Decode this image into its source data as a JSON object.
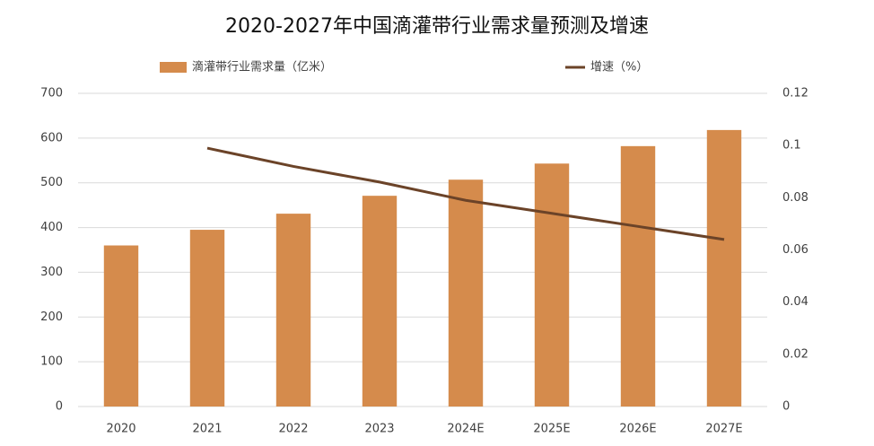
{
  "chart_data": {
    "type": "bar",
    "title": "2020-2027年中国滴灌带行业需求量预测及增速",
    "categories": [
      "2020",
      "2021",
      "2022",
      "2023",
      "2024E",
      "2025E",
      "2026E",
      "2027E"
    ],
    "series": [
      {
        "name": "滴灌带行业需求量（亿米）",
        "type": "bar",
        "color": "#d58b4c",
        "values": [
          360,
          395,
          431,
          471,
          507,
          543,
          582,
          618
        ]
      },
      {
        "name": "增速（%）",
        "type": "line",
        "axis": "y2",
        "color": "#6b4328",
        "values": [
          null,
          0.099,
          0.092,
          0.086,
          0.079,
          0.074,
          0.069,
          0.064
        ]
      }
    ],
    "ylim": [
      0,
      700
    ],
    "yticks": [
      0,
      100,
      200,
      300,
      400,
      500,
      600,
      700
    ],
    "y2lim": [
      0,
      0.12
    ],
    "y2ticks": [
      0,
      0.02,
      0.04,
      0.06,
      0.08,
      0.1,
      0.12
    ],
    "grid": true,
    "legend": "top"
  }
}
